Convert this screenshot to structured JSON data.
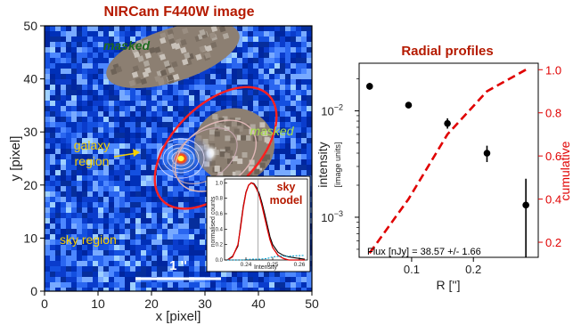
{
  "chart_data": [
    {
      "type": "heatmap",
      "title": "NIRCam F440W image",
      "xlabel": "x [pixel]",
      "ylabel": "y [pixel]",
      "xlim": [
        0,
        50
      ],
      "ylim": [
        0,
        50
      ],
      "xticks": [
        "0",
        "10",
        "20",
        "30",
        "40",
        "50"
      ],
      "yticks": [
        "0",
        "10",
        "20",
        "30",
        "40",
        "50"
      ],
      "annotations": [
        {
          "id": "masked-top",
          "text": "masked",
          "color": "#1f6b1f"
        },
        {
          "id": "masked-right",
          "text": "masked",
          "color": "#a8e04a"
        },
        {
          "id": "galaxy-line1",
          "text": "galaxy",
          "color": "#f5d000"
        },
        {
          "id": "galaxy-line2",
          "text": "region",
          "color": "#f5d000"
        },
        {
          "id": "sky-region",
          "text": "sky region",
          "color": "#f5d000"
        },
        {
          "id": "scalebar",
          "text": "1 ''",
          "color": "#ffffff"
        }
      ],
      "masks": [
        {
          "cx": 24.0,
          "cy": 44.5,
          "rx": 13.0,
          "ry": 5.0,
          "rot": -18
        },
        {
          "cx": 35.5,
          "cy": 27.5,
          "rx": 7.5,
          "ry": 7.0,
          "rot": 0
        }
      ],
      "galaxy": {
        "cx": 25.5,
        "cy": 25.0
      },
      "galaxy_region": {
        "cx": 32.0,
        "cy": 27.0,
        "rx": 14.0,
        "ry": 8.0,
        "rot": 45
      },
      "colors": {
        "background": "#0a3ccc",
        "mask": "#8c7f72",
        "region": "#ff2020",
        "galaxy": "#ff5500"
      }
    },
    {
      "type": "line",
      "title": "sky model",
      "xlabel": "Intensity",
      "ylabel": "normalised counts",
      "xlim": [
        0.232,
        0.263
      ],
      "ylim": [
        0,
        1.05
      ],
      "xticks": [
        0.24,
        0.25,
        0.26
      ],
      "xtick_labels": [
        "0.24",
        "0.25",
        "0.26"
      ],
      "yticks": [
        0.0,
        0.2,
        0.4,
        0.6,
        0.8,
        1.0
      ],
      "ytick_labels": [
        "0.0",
        "0.2",
        "0.4",
        "0.6",
        "0.8",
        "1.0"
      ],
      "series": [
        {
          "color": "#000000",
          "x": [
            0.233,
            0.235,
            0.237,
            0.238,
            0.239,
            0.24,
            0.241,
            0.242,
            0.243,
            0.244,
            0.245,
            0.246,
            0.247,
            0.248,
            0.249,
            0.25,
            0.252,
            0.254,
            0.256,
            0.258,
            0.26,
            0.262
          ],
          "y": [
            0.0,
            0.05,
            0.18,
            0.45,
            0.7,
            0.88,
            0.97,
            1.0,
            0.99,
            0.94,
            0.86,
            0.74,
            0.6,
            0.45,
            0.3,
            0.2,
            0.1,
            0.06,
            0.04,
            0.03,
            0.02,
            0.01
          ]
        },
        {
          "color": "#e00000",
          "x": [
            0.233,
            0.235,
            0.237,
            0.238,
            0.239,
            0.24,
            0.241,
            0.242,
            0.243,
            0.244,
            0.245,
            0.246,
            0.247,
            0.248,
            0.249,
            0.25,
            0.252,
            0.254,
            0.256,
            0.258,
            0.26,
            0.262
          ],
          "y": [
            0.0,
            0.04,
            0.2,
            0.42,
            0.68,
            0.87,
            0.97,
            1.0,
            0.98,
            0.92,
            0.83,
            0.7,
            0.55,
            0.4,
            0.26,
            0.16,
            0.06,
            0.02,
            0.0,
            0.0,
            0.0,
            0.0
          ]
        },
        {
          "color": "#00a0d0",
          "x": [
            0.233,
            0.236,
            0.239,
            0.242,
            0.245,
            0.248,
            0.25,
            0.253,
            0.256,
            0.262
          ],
          "y": [
            0.0,
            0.0,
            0.0,
            0.01,
            0.01,
            0.02,
            0.04,
            0.05,
            0.05,
            0.06
          ]
        }
      ],
      "vline_x": 0.2445
    },
    {
      "type": "scatter",
      "title": "Radial profiles",
      "xlabel": "R ['']",
      "ylabel": "intensity",
      "ylabel_sub": "[image units]",
      "y2label": "cumulative",
      "xlim": [
        0.015,
        0.305
      ],
      "ylim_log": [
        0.00042,
        0.028
      ],
      "y2lim": [
        0.13,
        1.03
      ],
      "xticks": [
        0.1,
        0.2
      ],
      "xtick_labels": [
        "0.1",
        "0.2"
      ],
      "yticks": [
        0.01,
        0.001
      ],
      "ytick_labels_base": [
        "10",
        "10"
      ],
      "ytick_labels_exp": [
        "−2",
        "−3"
      ],
      "y2ticks": [
        0.2,
        0.4,
        0.6,
        0.8,
        1.0
      ],
      "y2tick_labels": [
        "0.2",
        "0.4",
        "0.6",
        "0.8",
        "1.0"
      ],
      "points": [
        {
          "x": 0.032,
          "y": 0.017,
          "ylo": 0.0158,
          "yhi": 0.0183
        },
        {
          "x": 0.095,
          "y": 0.0113,
          "ylo": 0.0106,
          "yhi": 0.012
        },
        {
          "x": 0.158,
          "y": 0.0076,
          "ylo": 0.0068,
          "yhi": 0.0085
        },
        {
          "x": 0.222,
          "y": 0.004,
          "ylo": 0.0033,
          "yhi": 0.0047
        },
        {
          "x": 0.285,
          "y": 0.0013,
          "ylo": 0.00042,
          "yhi": 0.0023
        }
      ],
      "cumulative": {
        "color": "#e00000",
        "x": [
          0.032,
          0.095,
          0.158,
          0.222,
          0.285
        ],
        "y": [
          0.15,
          0.4,
          0.7,
          0.9,
          1.0
        ]
      },
      "annotation": "Flux [nJy] = 38.57 +/- 1.66"
    }
  ]
}
